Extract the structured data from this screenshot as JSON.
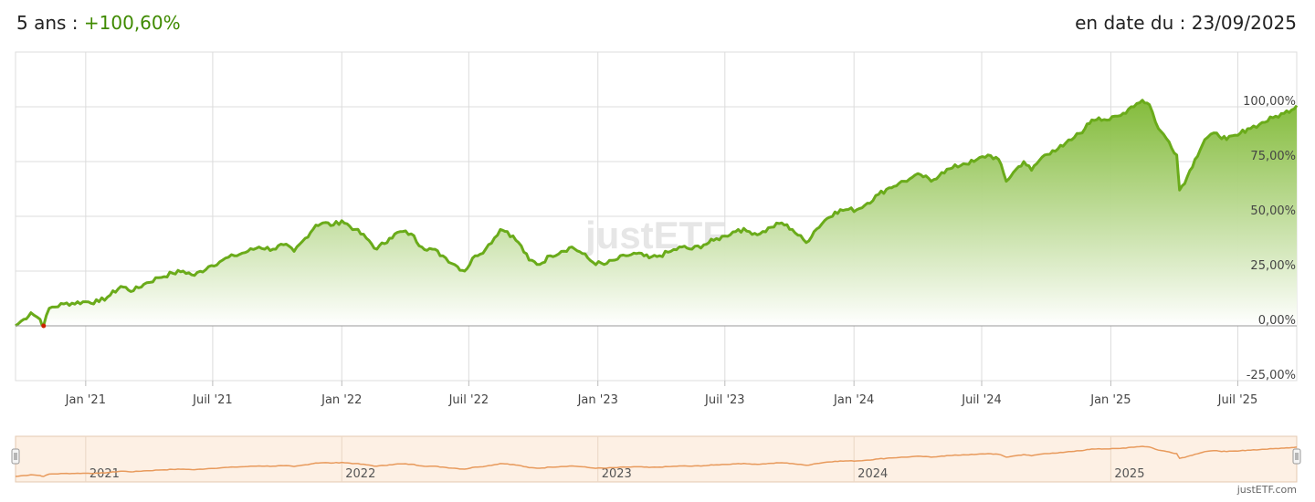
{
  "header": {
    "period_label": "5 ans :",
    "performance": "+100,60%",
    "date_label": "en date du : 23/09/2025"
  },
  "watermark": "justETF",
  "credit": "justETF.com",
  "colors": {
    "line": "#6aab1a",
    "fill_top": "#7db831",
    "fill_bottom": "#ffffff",
    "negative": "#cc2200",
    "grid": "#dcdcdc",
    "navigator_bg": "#fdf0e4",
    "navigator_line": "#e89a5c"
  },
  "chart_data": {
    "type": "area",
    "x_unit": "date",
    "y_unit": "percent",
    "ylim": [
      -25,
      125
    ],
    "yticks": [
      -25,
      0,
      25,
      50,
      75,
      100
    ],
    "ytick_labels": [
      "-25,00%",
      "0,00%",
      "25,00%",
      "50,00%",
      "75,00%",
      "100,00%"
    ],
    "xlim": [
      "2020-09-23",
      "2025-09-23"
    ],
    "xticks": [
      "2021-01-01",
      "2021-07-01",
      "2022-01-01",
      "2022-07-01",
      "2023-01-01",
      "2023-07-01",
      "2024-01-01",
      "2024-07-01",
      "2025-01-01",
      "2025-07-01"
    ],
    "xtick_labels": [
      "Jan '21",
      "Juil '21",
      "Jan '22",
      "Juil '22",
      "Jan '23",
      "Juil '23",
      "Jan '24",
      "Juil '24",
      "Jan '25",
      "Juil '25"
    ],
    "grid": true,
    "points": [
      [
        "2020-09-23",
        0
      ],
      [
        "2020-10-05",
        3
      ],
      [
        "2020-10-15",
        6
      ],
      [
        "2020-10-28",
        3
      ],
      [
        "2020-11-02",
        0
      ],
      [
        "2020-11-10",
        8
      ],
      [
        "2020-12-01",
        10
      ],
      [
        "2021-01-01",
        11
      ],
      [
        "2021-01-20",
        11
      ],
      [
        "2021-02-05",
        14
      ],
      [
        "2021-02-20",
        18
      ],
      [
        "2021-03-10",
        16
      ],
      [
        "2021-03-25",
        19
      ],
      [
        "2021-04-15",
        22
      ],
      [
        "2021-05-05",
        24
      ],
      [
        "2021-05-20",
        25
      ],
      [
        "2021-06-05",
        23
      ],
      [
        "2021-06-25",
        27
      ],
      [
        "2021-07-15",
        30
      ],
      [
        "2021-08-01",
        32
      ],
      [
        "2021-08-20",
        34
      ],
      [
        "2021-09-05",
        36
      ],
      [
        "2021-09-25",
        35
      ],
      [
        "2021-10-10",
        37
      ],
      [
        "2021-10-25",
        34
      ],
      [
        "2021-11-10",
        40
      ],
      [
        "2021-11-25",
        46
      ],
      [
        "2021-12-05",
        47
      ],
      [
        "2021-12-20",
        46
      ],
      [
        "2022-01-01",
        48
      ],
      [
        "2022-01-20",
        44
      ],
      [
        "2022-02-05",
        40
      ],
      [
        "2022-02-20",
        35
      ],
      [
        "2022-03-10",
        40
      ],
      [
        "2022-03-25",
        43
      ],
      [
        "2022-04-10",
        42
      ],
      [
        "2022-04-25",
        36
      ],
      [
        "2022-05-10",
        35
      ],
      [
        "2022-05-25",
        32
      ],
      [
        "2022-06-15",
        27
      ],
      [
        "2022-06-25",
        25
      ],
      [
        "2022-07-10",
        32
      ],
      [
        "2022-07-25",
        35
      ],
      [
        "2022-08-15",
        44
      ],
      [
        "2022-08-25",
        43
      ],
      [
        "2022-09-10",
        38
      ],
      [
        "2022-09-25",
        30
      ],
      [
        "2022-10-10",
        28
      ],
      [
        "2022-10-25",
        32
      ],
      [
        "2022-11-10",
        34
      ],
      [
        "2022-11-25",
        36
      ],
      [
        "2022-12-10",
        33
      ],
      [
        "2022-12-25",
        29
      ],
      [
        "2023-01-10",
        28
      ],
      [
        "2023-01-25",
        30
      ],
      [
        "2023-02-10",
        32
      ],
      [
        "2023-02-25",
        33
      ],
      [
        "2023-03-15",
        31
      ],
      [
        "2023-03-30",
        32
      ],
      [
        "2023-04-15",
        34
      ],
      [
        "2023-05-01",
        36
      ],
      [
        "2023-05-15",
        35
      ],
      [
        "2023-06-01",
        37
      ],
      [
        "2023-06-15",
        39
      ],
      [
        "2023-07-01",
        41
      ],
      [
        "2023-07-20",
        44
      ],
      [
        "2023-08-05",
        43
      ],
      [
        "2023-08-20",
        42
      ],
      [
        "2023-09-05",
        45
      ],
      [
        "2023-09-20",
        47
      ],
      [
        "2023-10-05",
        44
      ],
      [
        "2023-10-25",
        38
      ],
      [
        "2023-11-05",
        43
      ],
      [
        "2023-11-20",
        48
      ],
      [
        "2023-12-05",
        52
      ],
      [
        "2023-12-20",
        53
      ],
      [
        "2024-01-05",
        53
      ],
      [
        "2024-01-20",
        56
      ],
      [
        "2024-02-05",
        60
      ],
      [
        "2024-02-20",
        63
      ],
      [
        "2024-03-05",
        65
      ],
      [
        "2024-03-20",
        67
      ],
      [
        "2024-04-05",
        69
      ],
      [
        "2024-04-20",
        66
      ],
      [
        "2024-05-05",
        70
      ],
      [
        "2024-05-20",
        72
      ],
      [
        "2024-06-05",
        74
      ],
      [
        "2024-06-20",
        75
      ],
      [
        "2024-07-10",
        78
      ],
      [
        "2024-07-25",
        76
      ],
      [
        "2024-08-05",
        66
      ],
      [
        "2024-08-15",
        70
      ],
      [
        "2024-08-30",
        75
      ],
      [
        "2024-09-10",
        71
      ],
      [
        "2024-09-25",
        77
      ],
      [
        "2024-10-10",
        80
      ],
      [
        "2024-10-25",
        82
      ],
      [
        "2024-11-10",
        86
      ],
      [
        "2024-11-25",
        90
      ],
      [
        "2024-12-05",
        94
      ],
      [
        "2024-12-15",
        95
      ],
      [
        "2024-12-30",
        94
      ],
      [
        "2025-01-15",
        96
      ],
      [
        "2025-01-30",
        100
      ],
      [
        "2025-02-15",
        103
      ],
      [
        "2025-02-25",
        101
      ],
      [
        "2025-03-10",
        90
      ],
      [
        "2025-03-25",
        84
      ],
      [
        "2025-04-05",
        78
      ],
      [
        "2025-04-09",
        62
      ],
      [
        "2025-04-20",
        68
      ],
      [
        "2025-05-01",
        76
      ],
      [
        "2025-05-15",
        85
      ],
      [
        "2025-06-01",
        88
      ],
      [
        "2025-06-15",
        85
      ],
      [
        "2025-07-01",
        87
      ],
      [
        "2025-07-15",
        90
      ],
      [
        "2025-08-01",
        92
      ],
      [
        "2025-08-20",
        95
      ],
      [
        "2025-09-05",
        97
      ],
      [
        "2025-09-23",
        100.6
      ]
    ]
  },
  "navigator": {
    "years": [
      "2021",
      "2022",
      "2023",
      "2024",
      "2025"
    ]
  }
}
